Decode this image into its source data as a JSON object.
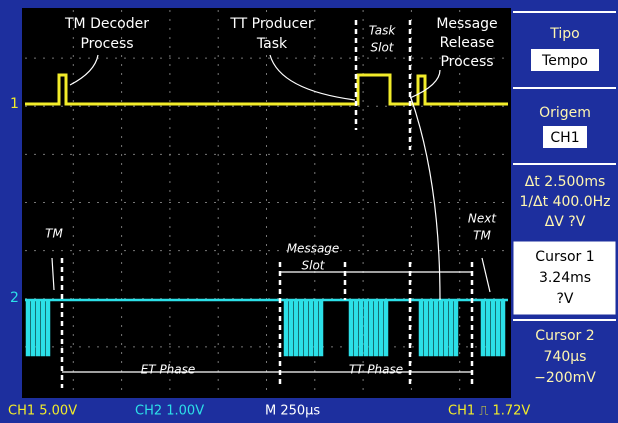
{
  "screen": {
    "channel_markers": [
      "1",
      "2"
    ],
    "annotations": [
      {
        "lines": [
          "TM Decoder",
          "Process"
        ]
      },
      {
        "lines": [
          "TT Producer",
          "Task"
        ]
      },
      {
        "lines": [
          "Task",
          "Slot"
        ]
      },
      {
        "lines": [
          "Message",
          "Release",
          "Process"
        ]
      },
      {
        "lines": [
          "TM"
        ]
      },
      {
        "lines": [
          "Message",
          "Slot"
        ]
      },
      {
        "lines": [
          "Next",
          "TM"
        ]
      },
      {
        "lines": [
          "ET Phase"
        ]
      },
      {
        "lines": [
          "TT Phase"
        ]
      }
    ]
  },
  "menu": {
    "tipo_label": "Tipo",
    "tipo_value": "Tempo",
    "origem_label": "Origem",
    "origem_value": "CH1",
    "delta_t": "Δt 2.500ms",
    "inv_delta_t": "1/Δt 400.0Hz",
    "delta_v": "ΔV ?V",
    "cursor1": {
      "label": "Cursor 1",
      "time": "3.24ms",
      "volt": "?V"
    },
    "cursor2": {
      "label": "Cursor 2",
      "time": "740µs",
      "volt": "−200mV"
    }
  },
  "status": {
    "ch1": "CH1 5.00V",
    "ch2": "CH2 1.00V",
    "timebase": "M 250µs",
    "trigger": "CH1 ⎍ 1.72V"
  }
}
